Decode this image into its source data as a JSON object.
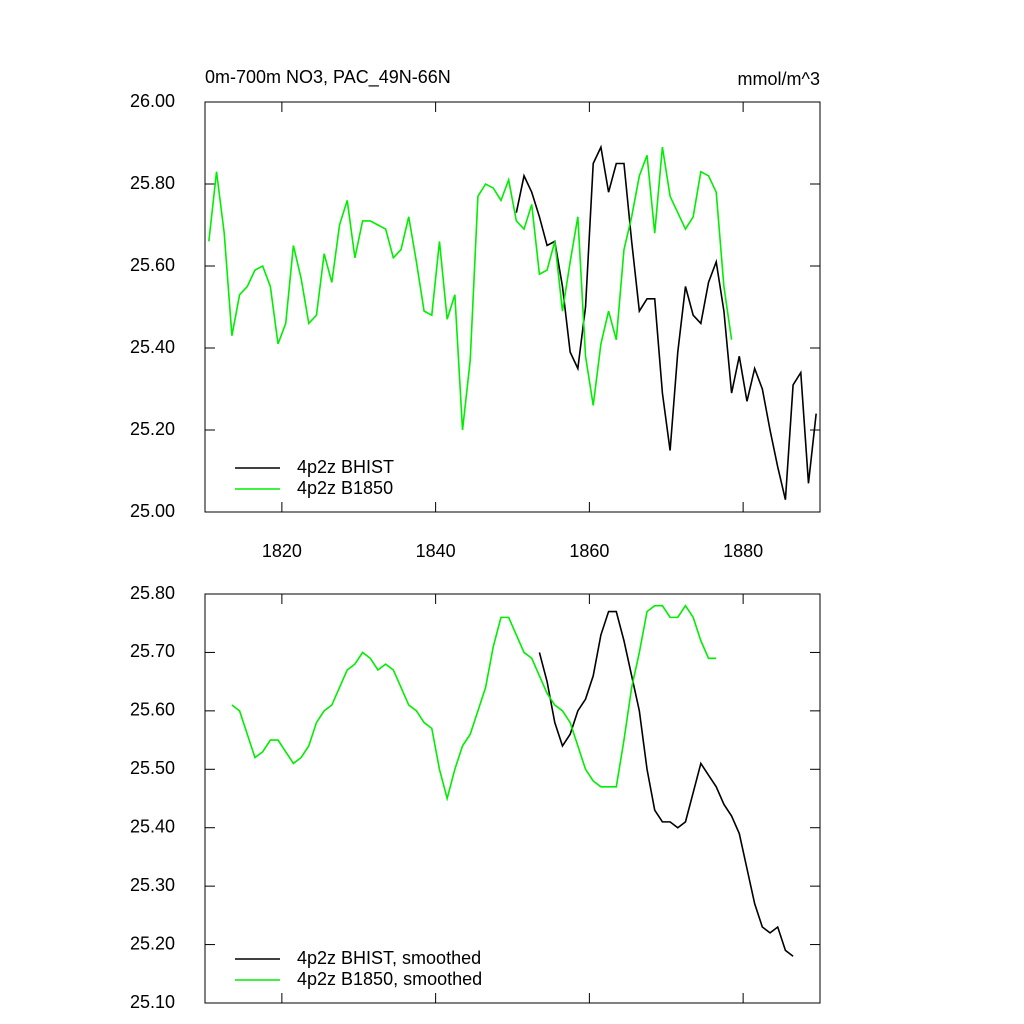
{
  "chart_data": [
    {
      "type": "line",
      "title": "0m-700m NO3, PAC_49N-66N",
      "subtitle": "mmol/m^3",
      "xlim": [
        1810,
        1890
      ],
      "xticks": [
        1820,
        1840,
        1860,
        1880
      ],
      "ylim": [
        25.0,
        26.0
      ],
      "yticks": [
        {
          "value": 25.0,
          "label": "25.00"
        },
        {
          "value": 25.2,
          "label": "25.20"
        },
        {
          "value": 25.4,
          "label": "25.40"
        },
        {
          "value": 25.6,
          "label": "25.60"
        },
        {
          "value": 25.8,
          "label": "25.80"
        },
        {
          "value": 26.0,
          "label": "26.00"
        }
      ],
      "legend": "lower left",
      "series": [
        {
          "name": "4p2z BHIST",
          "color": "#000000",
          "x": [
            1850.5,
            1851.5,
            1852.5,
            1853.5,
            1854.5,
            1855.5,
            1856.5,
            1857.5,
            1858.5,
            1859.5,
            1860.5,
            1861.5,
            1862.5,
            1863.5,
            1864.5,
            1865.5,
            1866.5,
            1867.5,
            1868.5,
            1869.5,
            1870.5,
            1871.5,
            1872.5,
            1873.5,
            1874.5,
            1875.5,
            1876.5,
            1877.5,
            1878.5,
            1879.5,
            1880.5,
            1881.5,
            1882.5,
            1883.5,
            1884.5,
            1885.5,
            1886.5,
            1887.5,
            1888.5,
            1889.5
          ],
          "values": [
            25.73,
            25.82,
            25.78,
            25.72,
            25.65,
            25.66,
            25.55,
            25.39,
            25.35,
            25.5,
            25.85,
            25.89,
            25.78,
            25.85,
            25.85,
            25.66,
            25.49,
            25.52,
            25.52,
            25.29,
            25.15,
            25.39,
            25.55,
            25.48,
            25.46,
            25.56,
            25.61,
            25.49,
            25.29,
            25.38,
            25.27,
            25.35,
            25.3,
            25.2,
            25.11,
            25.03,
            25.31,
            25.34,
            25.07,
            25.24
          ]
        },
        {
          "name": "4p2z B1850",
          "color": "#00ee00",
          "x": [
            1810.5,
            1811.5,
            1812.5,
            1813.5,
            1814.5,
            1815.5,
            1816.5,
            1817.5,
            1818.5,
            1819.5,
            1820.5,
            1821.5,
            1822.5,
            1823.5,
            1824.5,
            1825.5,
            1826.5,
            1827.5,
            1828.5,
            1829.5,
            1830.5,
            1831.5,
            1832.5,
            1833.5,
            1834.5,
            1835.5,
            1836.5,
            1837.5,
            1838.5,
            1839.5,
            1840.5,
            1841.5,
            1842.5,
            1843.5,
            1844.5,
            1845.5,
            1846.5,
            1847.5,
            1848.5,
            1849.5,
            1850.5,
            1851.5,
            1852.5,
            1853.5,
            1854.5,
            1855.5,
            1856.5,
            1857.5,
            1858.5,
            1859.5,
            1860.5,
            1861.5,
            1862.5,
            1863.5,
            1864.5,
            1865.5,
            1866.5,
            1867.5,
            1868.5,
            1869.5,
            1870.5,
            1871.5,
            1872.5,
            1873.5,
            1874.5,
            1875.5,
            1876.5,
            1877.5,
            1878.5
          ],
          "values": [
            25.66,
            25.83,
            25.68,
            25.43,
            25.53,
            25.55,
            25.59,
            25.6,
            25.55,
            25.41,
            25.46,
            25.65,
            25.57,
            25.46,
            25.48,
            25.63,
            25.56,
            25.7,
            25.76,
            25.62,
            25.71,
            25.71,
            25.7,
            25.69,
            25.62,
            25.64,
            25.72,
            25.61,
            25.49,
            25.48,
            25.66,
            25.47,
            25.53,
            25.2,
            25.37,
            25.77,
            25.8,
            25.79,
            25.76,
            25.81,
            25.71,
            25.69,
            25.75,
            25.58,
            25.59,
            25.66,
            25.49,
            25.61,
            25.72,
            25.38,
            25.26,
            25.41,
            25.49,
            25.42,
            25.64,
            25.72,
            25.82,
            25.87,
            25.68,
            25.89,
            25.77,
            25.73,
            25.69,
            25.72,
            25.83,
            25.82,
            25.78,
            25.55,
            25.42
          ]
        }
      ]
    },
    {
      "type": "line",
      "xlim": [
        1810,
        1890
      ],
      "xticks": [
        1820,
        1840,
        1860,
        1880
      ],
      "ylim": [
        25.1,
        25.8
      ],
      "yticks": [
        {
          "value": 25.1,
          "label": "25.10"
        },
        {
          "value": 25.2,
          "label": "25.20"
        },
        {
          "value": 25.3,
          "label": "25.30"
        },
        {
          "value": 25.4,
          "label": "25.40"
        },
        {
          "value": 25.5,
          "label": "25.50"
        },
        {
          "value": 25.6,
          "label": "25.60"
        },
        {
          "value": 25.7,
          "label": "25.70"
        },
        {
          "value": 25.8,
          "label": "25.80"
        }
      ],
      "legend": "lower left",
      "series": [
        {
          "name": "4p2z BHIST, smoothed",
          "color": "#000000",
          "x": [
            1853.5,
            1854.5,
            1855.5,
            1856.5,
            1857.5,
            1858.5,
            1859.5,
            1860.5,
            1861.5,
            1862.5,
            1863.5,
            1864.5,
            1865.5,
            1866.5,
            1867.5,
            1868.5,
            1869.5,
            1870.5,
            1871.5,
            1872.5,
            1873.5,
            1874.5,
            1875.5,
            1876.5,
            1877.5,
            1878.5,
            1879.5,
            1880.5,
            1881.5,
            1882.5,
            1883.5,
            1884.5,
            1885.5,
            1886.5
          ],
          "values": [
            25.7,
            25.65,
            25.58,
            25.54,
            25.56,
            25.6,
            25.62,
            25.66,
            25.73,
            25.77,
            25.77,
            25.72,
            25.66,
            25.6,
            25.5,
            25.43,
            25.41,
            25.41,
            25.4,
            25.41,
            25.46,
            25.51,
            25.49,
            25.47,
            25.44,
            25.42,
            25.39,
            25.33,
            25.27,
            25.23,
            25.22,
            25.23,
            25.19,
            25.18
          ]
        },
        {
          "name": "4p2z B1850, smoothed",
          "color": "#00ee00",
          "x": [
            1813.5,
            1814.5,
            1815.5,
            1816.5,
            1817.5,
            1818.5,
            1819.5,
            1820.5,
            1821.5,
            1822.5,
            1823.5,
            1824.5,
            1825.5,
            1826.5,
            1827.5,
            1828.5,
            1829.5,
            1830.5,
            1831.5,
            1832.5,
            1833.5,
            1834.5,
            1835.5,
            1836.5,
            1837.5,
            1838.5,
            1839.5,
            1840.5,
            1841.5,
            1842.5,
            1843.5,
            1844.5,
            1845.5,
            1846.5,
            1847.5,
            1848.5,
            1849.5,
            1850.5,
            1851.5,
            1852.5,
            1853.5,
            1854.5,
            1855.5,
            1856.5,
            1857.5,
            1858.5,
            1859.5,
            1860.5,
            1861.5,
            1862.5,
            1863.5,
            1864.5,
            1865.5,
            1866.5,
            1867.5,
            1868.5,
            1869.5,
            1870.5,
            1871.5,
            1872.5,
            1873.5,
            1874.5,
            1875.5,
            1876.5
          ],
          "values": [
            25.61,
            25.6,
            25.56,
            25.52,
            25.53,
            25.55,
            25.55,
            25.53,
            25.51,
            25.52,
            25.54,
            25.58,
            25.6,
            25.61,
            25.64,
            25.67,
            25.68,
            25.7,
            25.69,
            25.67,
            25.68,
            25.67,
            25.64,
            25.61,
            25.6,
            25.58,
            25.57,
            25.5,
            25.45,
            25.5,
            25.54,
            25.56,
            25.6,
            25.64,
            25.71,
            25.76,
            25.76,
            25.73,
            25.7,
            25.69,
            25.66,
            25.63,
            25.61,
            25.6,
            25.58,
            25.54,
            25.5,
            25.48,
            25.47,
            25.47,
            25.47,
            25.55,
            25.64,
            25.7,
            25.77,
            25.78,
            25.78,
            25.76,
            25.76,
            25.78,
            25.76,
            25.72,
            25.69,
            25.69
          ]
        }
      ]
    }
  ]
}
